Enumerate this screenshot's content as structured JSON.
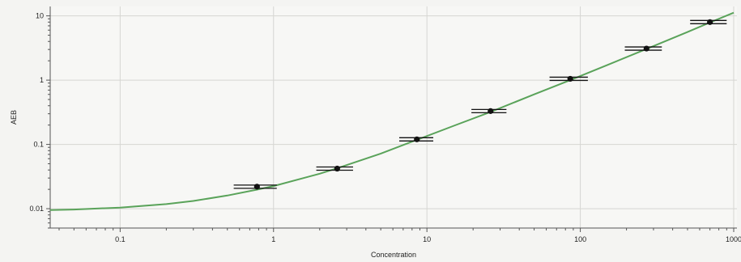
{
  "chart_data": {
    "type": "scatter",
    "title": "",
    "xlabel": "Concentration",
    "ylabel": "AEB",
    "x_scale": "log",
    "y_scale": "log",
    "xlim": [
      0.035,
      1050
    ],
    "ylim": [
      0.005,
      14
    ],
    "x_ticks": [
      0.1,
      1,
      10,
      100,
      1000
    ],
    "x_tick_labels": [
      "0.1",
      "1",
      "10",
      "100",
      "1000"
    ],
    "y_ticks": [
      0.01,
      0.1,
      1,
      10
    ],
    "y_tick_labels": [
      "0.01",
      "0.1",
      "1",
      "10"
    ],
    "grid": true,
    "legend": "none",
    "series": [
      {
        "kind": "points-with-error-bars",
        "x": [
          0.78,
          2.6,
          8.6,
          26,
          86,
          270,
          700
        ],
        "y": [
          0.022,
          0.042,
          0.12,
          0.33,
          1.05,
          3.1,
          8.0
        ],
        "x_err_low": [
          0.55,
          1.9,
          6.6,
          19.5,
          63,
          195,
          520
        ],
        "x_err_high": [
          1.05,
          3.3,
          11.0,
          33,
          112,
          340,
          900
        ],
        "color": "#111111"
      },
      {
        "kind": "fit-line",
        "x": [
          0.035,
          0.05,
          0.1,
          0.2,
          0.3,
          0.5,
          0.78,
          1,
          2,
          2.6,
          5,
          8.6,
          15,
          26,
          50,
          86,
          150,
          270,
          500,
          700,
          1000
        ],
        "y": [
          0.0095,
          0.0097,
          0.0104,
          0.0118,
          0.0132,
          0.016,
          0.0198,
          0.0225,
          0.035,
          0.0425,
          0.072,
          0.118,
          0.195,
          0.32,
          0.6,
          1.0,
          1.72,
          3.05,
          5.6,
          7.9,
          11.2
        ],
        "color": "#5aa35a"
      }
    ]
  }
}
